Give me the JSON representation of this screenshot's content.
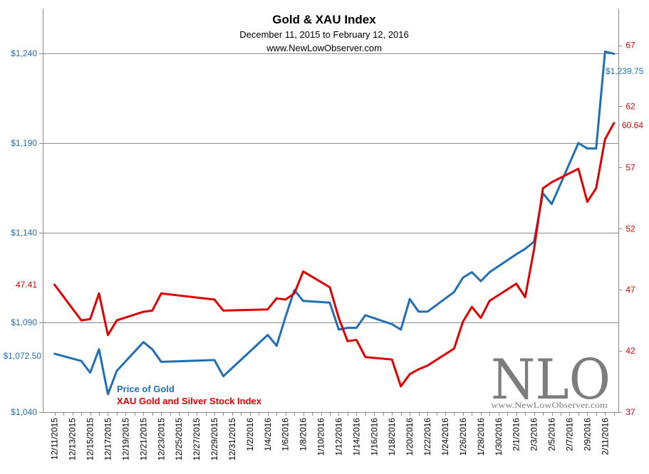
{
  "chart_data": {
    "type": "line",
    "title": "Gold & XAU Index",
    "subtitle": "December 11, 2015 to February 12, 2016",
    "source": "www.NewLowObserver.com",
    "x_tick_labels": [
      "12/11/2015",
      "12/13/2015",
      "12/15/2015",
      "12/17/2015",
      "12/19/2015",
      "12/21/2015",
      "12/23/2015",
      "12/25/2015",
      "12/27/2015",
      "12/29/2015",
      "12/31/2015",
      "1/2/2016",
      "1/4/2016",
      "1/6/2016",
      "1/8/2016",
      "1/10/2016",
      "1/12/2016",
      "1/14/2016",
      "1/16/2016",
      "1/18/2016",
      "1/20/2016",
      "1/22/2016",
      "1/24/2016",
      "1/26/2016",
      "1/28/2016",
      "1/30/2016",
      "2/1/2016",
      "2/3/2016",
      "2/5/2016",
      "2/7/2016",
      "2/9/2016",
      "2/11/2016"
    ],
    "left_axis": {
      "ylim": [
        1040,
        1265
      ],
      "ticks": [
        1040,
        1090,
        1140,
        1190,
        1240
      ],
      "tick_labels": [
        "$1,040",
        "$1,090",
        "$1,140",
        "$1,190",
        "$1,240"
      ]
    },
    "right_axis": {
      "ylim": [
        37,
        70
      ],
      "ticks": [
        37,
        42,
        47,
        52,
        57,
        62,
        67
      ],
      "tick_labels": [
        "37",
        "42",
        "47",
        "52",
        "57",
        "62",
        "67"
      ]
    },
    "gridlines_left": [
      1090,
      1140,
      1190,
      1240
    ],
    "series": [
      {
        "name": "Price of Gold",
        "axis": "left",
        "color": "#1f6fb5",
        "x": [
          "12/11/2015",
          "12/14/2015",
          "12/15/2015",
          "12/16/2015",
          "12/17/2015",
          "12/18/2015",
          "12/21/2015",
          "12/22/2015",
          "12/23/2015",
          "12/29/2015",
          "12/30/2015",
          "1/4/2016",
          "1/5/2016",
          "1/6/2016",
          "1/7/2016",
          "1/8/2016",
          "1/11/2016",
          "1/12/2016",
          "1/13/2016",
          "1/14/2016",
          "1/15/2016",
          "1/18/2016",
          "1/19/2016",
          "1/20/2016",
          "1/21/2016",
          "1/22/2016",
          "1/25/2016",
          "1/26/2016",
          "1/27/2016",
          "1/28/2016",
          "1/29/2016",
          "2/1/2016",
          "2/2/2016",
          "2/3/2016",
          "2/4/2016",
          "2/5/2016",
          "2/8/2016",
          "2/9/2016",
          "2/10/2016",
          "2/11/2016",
          "2/12/2016"
        ],
        "values": [
          1072.5,
          1068.5,
          1062,
          1075,
          1050,
          1063,
          1079,
          1075,
          1068,
          1069,
          1060,
          1083,
          1077,
          1093,
          1108,
          1102,
          1101,
          1086,
          1087,
          1087,
          1094,
          1089,
          1086,
          1103,
          1096,
          1096,
          1107,
          1115,
          1118,
          1113,
          1118,
          1128,
          1131,
          1135,
          1162,
          1156,
          1190,
          1187,
          1187,
          1241,
          1239.75
        ],
        "end_label": "$1,239.75"
      },
      {
        "name": "XAU Gold and Silver Stock Index",
        "axis": "right",
        "color": "#e00000",
        "x": [
          "12/11/2015",
          "12/14/2015",
          "12/15/2015",
          "12/16/2015",
          "12/17/2015",
          "12/18/2015",
          "12/21/2015",
          "12/22/2015",
          "12/23/2015",
          "12/29/2015",
          "12/30/2015",
          "1/4/2016",
          "1/5/2016",
          "1/6/2016",
          "1/7/2016",
          "1/8/2016",
          "1/11/2016",
          "1/12/2016",
          "1/13/2016",
          "1/14/2016",
          "1/15/2016",
          "1/18/2016",
          "1/19/2016",
          "1/20/2016",
          "1/21/2016",
          "1/22/2016",
          "1/25/2016",
          "1/26/2016",
          "1/27/2016",
          "1/28/2016",
          "1/29/2016",
          "2/1/2016",
          "2/2/2016",
          "2/3/2016",
          "2/4/2016",
          "2/5/2016",
          "2/8/2016",
          "2/9/2016",
          "2/10/2016",
          "2/11/2016",
          "2/12/2016"
        ],
        "values": [
          47.41,
          44.5,
          44.6,
          46.7,
          43.3,
          44.5,
          45.2,
          45.3,
          46.7,
          46.2,
          45.3,
          45.4,
          46.3,
          46.2,
          46.7,
          48.5,
          47.2,
          44.7,
          42.8,
          42.9,
          41.5,
          41.3,
          39.1,
          40.1,
          40.5,
          40.8,
          42.2,
          44.4,
          45.6,
          44.7,
          46.1,
          47.5,
          46.4,
          50.3,
          55.3,
          55.8,
          56.9,
          54.2,
          55.3,
          59.3,
          60.64
        ],
        "start_label": "47.41",
        "end_label": "60.64"
      }
    ],
    "watermark": {
      "logo_text": "NLO",
      "url_text": "www.NewLowObserver.com"
    }
  }
}
